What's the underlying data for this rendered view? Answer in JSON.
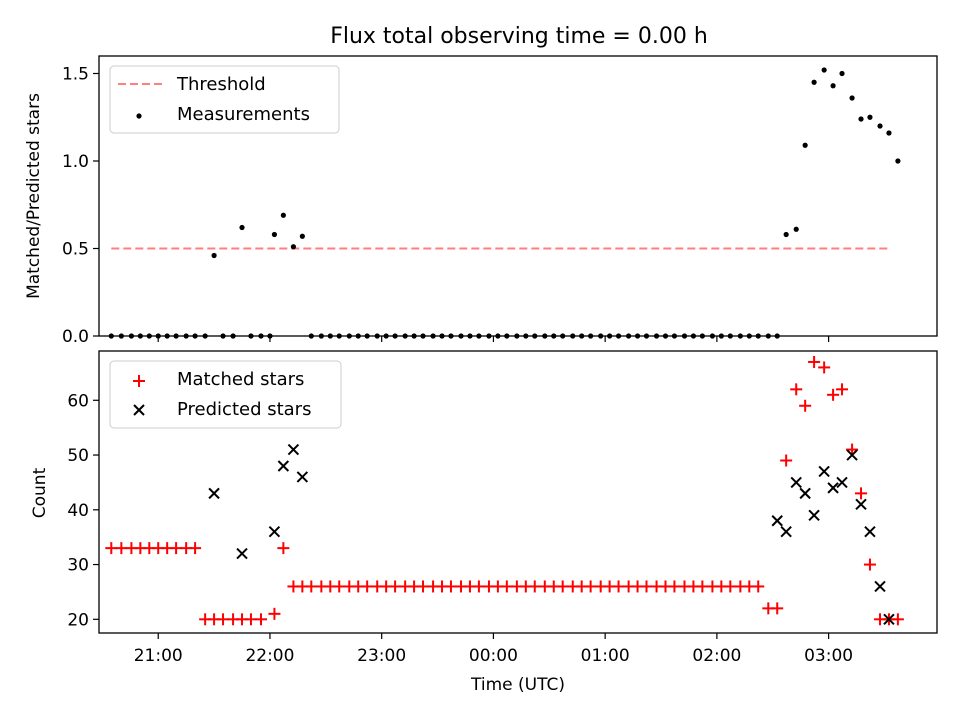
{
  "figure": {
    "title": "Flux total observing time = 0.00 h"
  },
  "chart_data": [
    {
      "type": "scatter",
      "xlabel": "",
      "ylabel": "Matched/Predicted stars",
      "xlim": [
        20.47,
        27.97
      ],
      "ylim": [
        0,
        1.6
      ],
      "yticks": [
        0,
        0.5,
        1.0,
        1.5
      ],
      "ytick_labels": [
        "0.0",
        "0.5",
        "1.0",
        "1.5"
      ],
      "xticks": [
        21,
        22,
        23,
        24,
        25,
        26,
        27
      ],
      "legend_position": "top-left",
      "threshold": {
        "name": "Threshold",
        "color": "#ff7f7f",
        "y": 0.5,
        "x_range": [
          20.58,
          27.55
        ]
      },
      "series": [
        {
          "name": "Measurements",
          "color": "#000000",
          "x": [
            20.58,
            20.67,
            20.76,
            20.84,
            20.92,
            21.0,
            21.08,
            21.16,
            21.25,
            21.33,
            21.42,
            21.5,
            21.58,
            21.67,
            21.75,
            21.83,
            21.92,
            22.0,
            22.04,
            22.12,
            22.21,
            22.29,
            22.37,
            22.46,
            22.54,
            22.62,
            22.71,
            22.79,
            22.87,
            22.96,
            23.04,
            23.12,
            23.21,
            23.29,
            23.37,
            23.46,
            23.54,
            23.62,
            23.71,
            23.79,
            23.87,
            23.96,
            24.04,
            24.12,
            24.21,
            24.29,
            24.37,
            24.46,
            24.54,
            24.62,
            24.71,
            24.79,
            24.87,
            24.96,
            25.04,
            25.12,
            25.21,
            25.29,
            25.37,
            25.46,
            25.54,
            25.62,
            25.71,
            25.79,
            25.87,
            25.96,
            26.04,
            26.12,
            26.21,
            26.29,
            26.37,
            26.46,
            26.54,
            26.62,
            26.71,
            26.79,
            26.87,
            26.96,
            27.04,
            27.12,
            27.21,
            27.29,
            27.37,
            27.46,
            27.54,
            27.62
          ],
          "y": [
            0,
            0,
            0,
            0,
            0,
            0,
            0,
            0,
            0,
            0,
            0,
            0.46,
            0,
            0,
            0.62,
            0,
            0,
            0,
            0.58,
            0.69,
            0.51,
            0.57,
            0,
            0,
            0,
            0,
            0,
            0,
            0,
            0,
            0,
            0,
            0,
            0,
            0,
            0,
            0,
            0,
            0,
            0,
            0,
            0,
            0,
            0,
            0,
            0,
            0,
            0,
            0,
            0,
            0,
            0,
            0,
            0,
            0,
            0,
            0,
            0,
            0,
            0,
            0,
            0,
            0,
            0,
            0,
            0,
            0,
            0,
            0,
            0,
            0,
            0,
            0,
            0.58,
            0.61,
            1.09,
            1.45,
            1.52,
            1.43,
            1.5,
            1.36,
            1.24,
            1.25,
            1.2,
            1.16,
            1.0
          ]
        }
      ]
    },
    {
      "type": "scatter",
      "xlabel": "Time (UTC)",
      "ylabel": "Count",
      "xlim": [
        20.47,
        27.97
      ],
      "ylim": [
        17.5,
        69
      ],
      "yticks": [
        20,
        30,
        40,
        50,
        60
      ],
      "ytick_labels": [
        "20",
        "30",
        "40",
        "50",
        "60"
      ],
      "xticks": [
        21,
        22,
        23,
        24,
        25,
        26,
        27
      ],
      "xtick_labels": [
        "21:00",
        "22:00",
        "23:00",
        "00:00",
        "01:00",
        "02:00",
        "03:00"
      ],
      "legend_position": "top-left",
      "series": [
        {
          "name": "Matched stars",
          "color": "#ff0000",
          "marker": "plus",
          "x": [
            20.58,
            20.67,
            20.76,
            20.84,
            20.92,
            21.0,
            21.08,
            21.16,
            21.25,
            21.33,
            21.42,
            21.5,
            21.58,
            21.67,
            21.75,
            21.83,
            21.92,
            22.04,
            22.12,
            22.21,
            22.29,
            22.37,
            22.46,
            22.54,
            22.62,
            22.71,
            22.79,
            22.87,
            22.96,
            23.04,
            23.12,
            23.21,
            23.29,
            23.37,
            23.46,
            23.54,
            23.62,
            23.71,
            23.79,
            23.87,
            23.96,
            24.04,
            24.12,
            24.21,
            24.29,
            24.37,
            24.46,
            24.54,
            24.62,
            24.71,
            24.79,
            24.87,
            24.96,
            25.04,
            25.12,
            25.21,
            25.29,
            25.37,
            25.46,
            25.54,
            25.62,
            25.71,
            25.79,
            25.87,
            25.96,
            26.04,
            26.12,
            26.21,
            26.29,
            26.37,
            26.46,
            26.54,
            26.62,
            26.71,
            26.79,
            26.87,
            26.96,
            27.04,
            27.12,
            27.21,
            27.29,
            27.37,
            27.46,
            27.54,
            27.62
          ],
          "y": [
            33,
            33,
            33,
            33,
            33,
            33,
            33,
            33,
            33,
            33,
            20,
            20,
            20,
            20,
            20,
            20,
            20,
            21,
            33,
            26,
            26,
            26,
            26,
            26,
            26,
            26,
            26,
            26,
            26,
            26,
            26,
            26,
            26,
            26,
            26,
            26,
            26,
            26,
            26,
            26,
            26,
            26,
            26,
            26,
            26,
            26,
            26,
            26,
            26,
            26,
            26,
            26,
            26,
            26,
            26,
            26,
            26,
            26,
            26,
            26,
            26,
            26,
            26,
            26,
            26,
            26,
            26,
            26,
            26,
            26,
            22,
            22,
            49,
            62,
            59,
            67,
            66,
            61,
            62,
            51,
            43,
            30,
            20,
            20,
            20
          ]
        },
        {
          "name": "Predicted stars",
          "color": "#000000",
          "marker": "x",
          "x": [
            21.5,
            21.75,
            22.04,
            22.12,
            22.21,
            22.29,
            26.54,
            26.62,
            26.71,
            26.79,
            26.87,
            26.96,
            27.04,
            27.12,
            27.21,
            27.29,
            27.37,
            27.46,
            27.54
          ],
          "y": [
            43,
            32,
            36,
            48,
            51,
            46,
            38,
            36,
            45,
            43,
            39,
            47,
            44,
            45,
            50,
            41,
            36,
            26,
            20
          ]
        }
      ]
    }
  ]
}
